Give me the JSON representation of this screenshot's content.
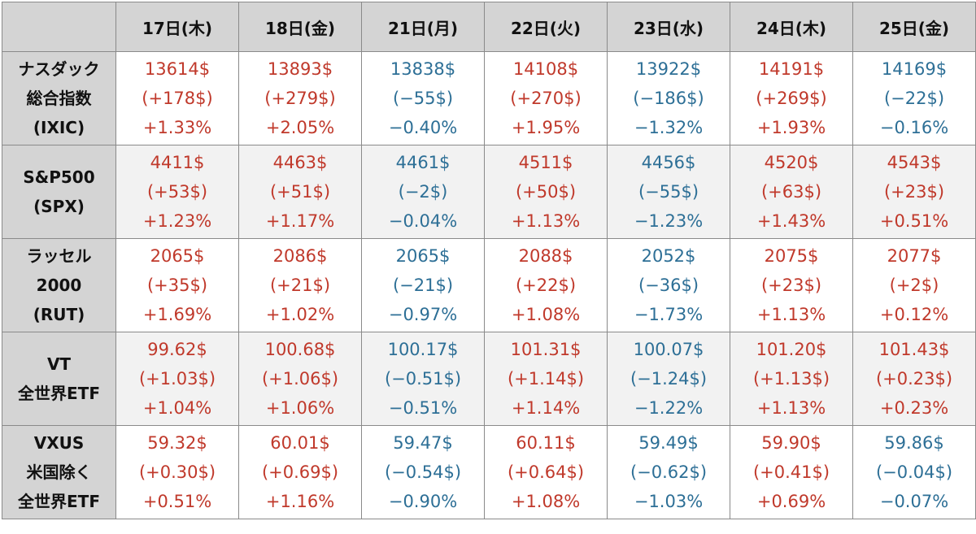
{
  "colors": {
    "up": "#c0392b",
    "down": "#2d6f96",
    "header_bg": "#d4d4d4"
  },
  "chart_data": {
    "type": "table",
    "columns": [
      "17日(木)",
      "18日(金)",
      "21日(月)",
      "22日(火)",
      "23日(水)",
      "24日(木)",
      "25日(金)"
    ],
    "rows": [
      {
        "label_lines": [
          "ナスダック",
          "総合指数",
          "(IXIC)"
        ],
        "cells": [
          {
            "price": "13614$",
            "change": "(+178$)",
            "pct": "+1.33%",
            "dir": "up"
          },
          {
            "price": "13893$",
            "change": "(+279$)",
            "pct": "+2.05%",
            "dir": "up"
          },
          {
            "price": "13838$",
            "change": "(−55$)",
            "pct": "−0.40%",
            "dir": "down"
          },
          {
            "price": "14108$",
            "change": "(+270$)",
            "pct": "+1.95%",
            "dir": "up"
          },
          {
            "price": "13922$",
            "change": "(−186$)",
            "pct": "−1.32%",
            "dir": "down"
          },
          {
            "price": "14191$",
            "change": "(+269$)",
            "pct": "+1.93%",
            "dir": "up"
          },
          {
            "price": "14169$",
            "change": "(−22$)",
            "pct": "−0.16%",
            "dir": "down"
          }
        ]
      },
      {
        "label_lines": [
          "S&P500",
          "(SPX)"
        ],
        "cells": [
          {
            "price": "4411$",
            "change": "(+53$)",
            "pct": "+1.23%",
            "dir": "up"
          },
          {
            "price": "4463$",
            "change": "(+51$)",
            "pct": "+1.17%",
            "dir": "up"
          },
          {
            "price": "4461$",
            "change": "(−2$)",
            "pct": "−0.04%",
            "dir": "down"
          },
          {
            "price": "4511$",
            "change": "(+50$)",
            "pct": "+1.13%",
            "dir": "up"
          },
          {
            "price": "4456$",
            "change": "(−55$)",
            "pct": "−1.23%",
            "dir": "down"
          },
          {
            "price": "4520$",
            "change": "(+63$)",
            "pct": "+1.43%",
            "dir": "up"
          },
          {
            "price": "4543$",
            "change": "(+23$)",
            "pct": "+0.51%",
            "dir": "up"
          }
        ]
      },
      {
        "label_lines": [
          "ラッセル",
          "2000",
          "(RUT)"
        ],
        "cells": [
          {
            "price": "2065$",
            "change": "(+35$)",
            "pct": "+1.69%",
            "dir": "up"
          },
          {
            "price": "2086$",
            "change": "(+21$)",
            "pct": "+1.02%",
            "dir": "up"
          },
          {
            "price": "2065$",
            "change": "(−21$)",
            "pct": "−0.97%",
            "dir": "down"
          },
          {
            "price": "2088$",
            "change": "(+22$)",
            "pct": "+1.08%",
            "dir": "up"
          },
          {
            "price": "2052$",
            "change": "(−36$)",
            "pct": "−1.73%",
            "dir": "down"
          },
          {
            "price": "2075$",
            "change": "(+23$)",
            "pct": "+1.13%",
            "dir": "up"
          },
          {
            "price": "2077$",
            "change": "(+2$)",
            "pct": "+0.12%",
            "dir": "up"
          }
        ]
      },
      {
        "label_lines": [
          "VT",
          "全世界ETF"
        ],
        "cells": [
          {
            "price": "99.62$",
            "change": "(+1.03$)",
            "pct": "+1.04%",
            "dir": "up"
          },
          {
            "price": "100.68$",
            "change": "(+1.06$)",
            "pct": "+1.06%",
            "dir": "up"
          },
          {
            "price": "100.17$",
            "change": "(−0.51$)",
            "pct": "−0.51%",
            "dir": "down"
          },
          {
            "price": "101.31$",
            "change": "(+1.14$)",
            "pct": "+1.14%",
            "dir": "up"
          },
          {
            "price": "100.07$",
            "change": "(−1.24$)",
            "pct": "−1.22%",
            "dir": "down"
          },
          {
            "price": "101.20$",
            "change": "(+1.13$)",
            "pct": "+1.13%",
            "dir": "up"
          },
          {
            "price": "101.43$",
            "change": "(+0.23$)",
            "pct": "+0.23%",
            "dir": "up"
          }
        ]
      },
      {
        "label_lines": [
          "VXUS",
          "米国除く",
          "全世界ETF"
        ],
        "cells": [
          {
            "price": "59.32$",
            "change": "(+0.30$)",
            "pct": "+0.51%",
            "dir": "up"
          },
          {
            "price": "60.01$",
            "change": "(+0.69$)",
            "pct": "+1.16%",
            "dir": "up"
          },
          {
            "price": "59.47$",
            "change": "(−0.54$)",
            "pct": "−0.90%",
            "dir": "down"
          },
          {
            "price": "60.11$",
            "change": "(+0.64$)",
            "pct": "+1.08%",
            "dir": "up"
          },
          {
            "price": "59.49$",
            "change": "(−0.62$)",
            "pct": "−1.03%",
            "dir": "down"
          },
          {
            "price": "59.90$",
            "change": "(+0.41$)",
            "pct": "+0.69%",
            "dir": "up"
          },
          {
            "price": "59.86$",
            "change": "(−0.04$)",
            "pct": "−0.07%",
            "dir": "down"
          }
        ]
      }
    ]
  }
}
